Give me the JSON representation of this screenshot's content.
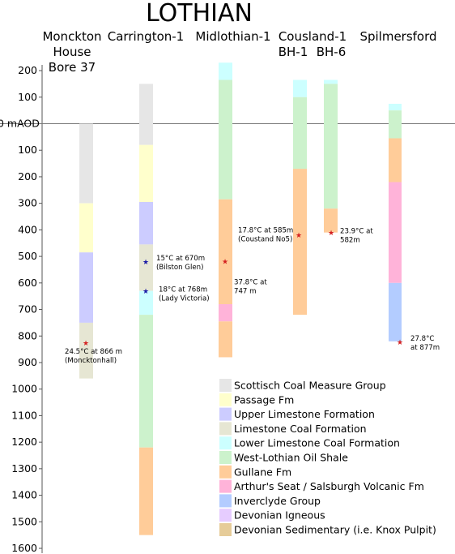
{
  "title": "LOTHIAN",
  "datum_label": "0 mAOD",
  "axis": {
    "above_ticks": [
      200,
      100
    ],
    "below_ticks": [
      100,
      200,
      300,
      400,
      500,
      600,
      700,
      800,
      900,
      1000,
      1100,
      1200,
      1300,
      1400,
      1500,
      1600
    ]
  },
  "columns": [
    {
      "id": "monckton",
      "lines": [
        "Monckton",
        "House",
        "Bore 37"
      ]
    },
    {
      "id": "carrington",
      "lines": [
        "Carrington-1"
      ]
    },
    {
      "id": "midlothian",
      "lines": [
        "Midlothian-1"
      ]
    },
    {
      "id": "cousland",
      "lines": [
        "Cousland-1",
        "BH-1",
        "BH-6"
      ]
    },
    {
      "id": "spilmersford",
      "lines": [
        "Spilmersford"
      ]
    }
  ],
  "formations": [
    {
      "key": "scm",
      "label": "Scottisch Coal Measure Group",
      "color": "#e6e6e6"
    },
    {
      "key": "passage",
      "label": "Passage Fm",
      "color": "#ffffcc"
    },
    {
      "key": "ulf",
      "label": "Upper Limestone Formation",
      "color": "#ccccff"
    },
    {
      "key": "lcf",
      "label": "Limestone Coal Formation",
      "color": "#e6e6d3"
    },
    {
      "key": "llcf",
      "label": "Lower Limestone Coal Formation",
      "color": "#ccffff"
    },
    {
      "key": "wlos",
      "label": "West-Lothian Oil Shale",
      "color": "#ccf2cc"
    },
    {
      "key": "gullane",
      "label": "Gullane Fm",
      "color": "#ffcc99"
    },
    {
      "key": "arthur",
      "label": "Arthur's Seat / Salsburgh Volcanic Fm",
      "color": "#ffb3d9"
    },
    {
      "key": "inverclyde",
      "label": "Inverclyde Group",
      "color": "#b3ccff"
    },
    {
      "key": "devign",
      "label": "Devonian Igneous",
      "color": "#e6ccff"
    },
    {
      "key": "devsed",
      "label": "Devonian Sedimentary (i.e. Knox Pulpit)",
      "color": "#e6cc99"
    }
  ],
  "wells": [
    {
      "id": "monckton",
      "segments": [
        {
          "top": 0,
          "base": 300,
          "f": "scm"
        },
        {
          "top": 300,
          "base": 485,
          "f": "passage"
        },
        {
          "top": 485,
          "base": 750,
          "f": "ulf"
        },
        {
          "top": 750,
          "base": 960,
          "f": "lcf"
        }
      ]
    },
    {
      "id": "carrington",
      "segments": [
        {
          "top": -150,
          "base": 80,
          "f": "scm"
        },
        {
          "top": 80,
          "base": 295,
          "f": "passage"
        },
        {
          "top": 295,
          "base": 455,
          "f": "ulf"
        },
        {
          "top": 455,
          "base": 630,
          "f": "lcf"
        },
        {
          "top": 630,
          "base": 720,
          "f": "llcf"
        },
        {
          "top": 720,
          "base": 1220,
          "f": "wlos"
        },
        {
          "top": 1220,
          "base": 1550,
          "f": "gullane"
        }
      ]
    },
    {
      "id": "midlothian",
      "segments": [
        {
          "top": -230,
          "base": -165,
          "f": "llcf"
        },
        {
          "top": -165,
          "base": 285,
          "f": "wlos"
        },
        {
          "top": 285,
          "base": 680,
          "f": "gullane"
        },
        {
          "top": 680,
          "base": 745,
          "f": "arthur"
        },
        {
          "top": 745,
          "base": 880,
          "f": "gullane"
        }
      ]
    },
    {
      "id": "cousland1",
      "segments": [
        {
          "top": -165,
          "base": -100,
          "f": "llcf"
        },
        {
          "top": -100,
          "base": 170,
          "f": "wlos"
        },
        {
          "top": 170,
          "base": 720,
          "f": "gullane"
        }
      ]
    },
    {
      "id": "cousland2",
      "segments": [
        {
          "top": -165,
          "base": -150,
          "f": "llcf"
        },
        {
          "top": -150,
          "base": 320,
          "f": "wlos"
        },
        {
          "top": 320,
          "base": 410,
          "f": "gullane"
        }
      ]
    },
    {
      "id": "spilmersford",
      "segments": [
        {
          "top": -75,
          "base": -50,
          "f": "llcf"
        },
        {
          "top": -50,
          "base": 55,
          "f": "wlos"
        },
        {
          "top": 55,
          "base": 220,
          "f": "gullane"
        },
        {
          "top": 220,
          "base": 600,
          "f": "arthur"
        },
        {
          "top": 600,
          "base": 820,
          "f": "inverclyde"
        }
      ]
    }
  ],
  "temperatures": [
    {
      "well": "monckton",
      "depth": 825,
      "color": "#d42020",
      "lines": [
        "24.5°C at 866 m",
        "(Moncktonhall)"
      ]
    },
    {
      "well": "carrington",
      "depth": 520,
      "color": "#1a1aa6",
      "lines": [
        "15°C at 670m",
        "(Bilston Glen)"
      ]
    },
    {
      "well": "carrington",
      "depth": 630,
      "color": "#1a1aa6",
      "lines": [
        "18°C at 768m",
        "(Lady Victoria)"
      ]
    },
    {
      "well": "midlothian",
      "depth": 518,
      "color": "#d42020",
      "lines": [
        "37.8°C at",
        "747 m"
      ]
    },
    {
      "well": "cousland1",
      "depth": 418,
      "color": "#d42020",
      "lines": [
        "17.8°C at 585m",
        "(Coustand No5)"
      ]
    },
    {
      "well": "cousland2",
      "depth": 410,
      "color": "#d42020",
      "lines": [
        "23.9°C at",
        "582m"
      ]
    },
    {
      "well": "spilmersford",
      "depth": 822,
      "color": "#d42020",
      "lines": [
        "27.8°C",
        "at 877m"
      ]
    }
  ]
}
